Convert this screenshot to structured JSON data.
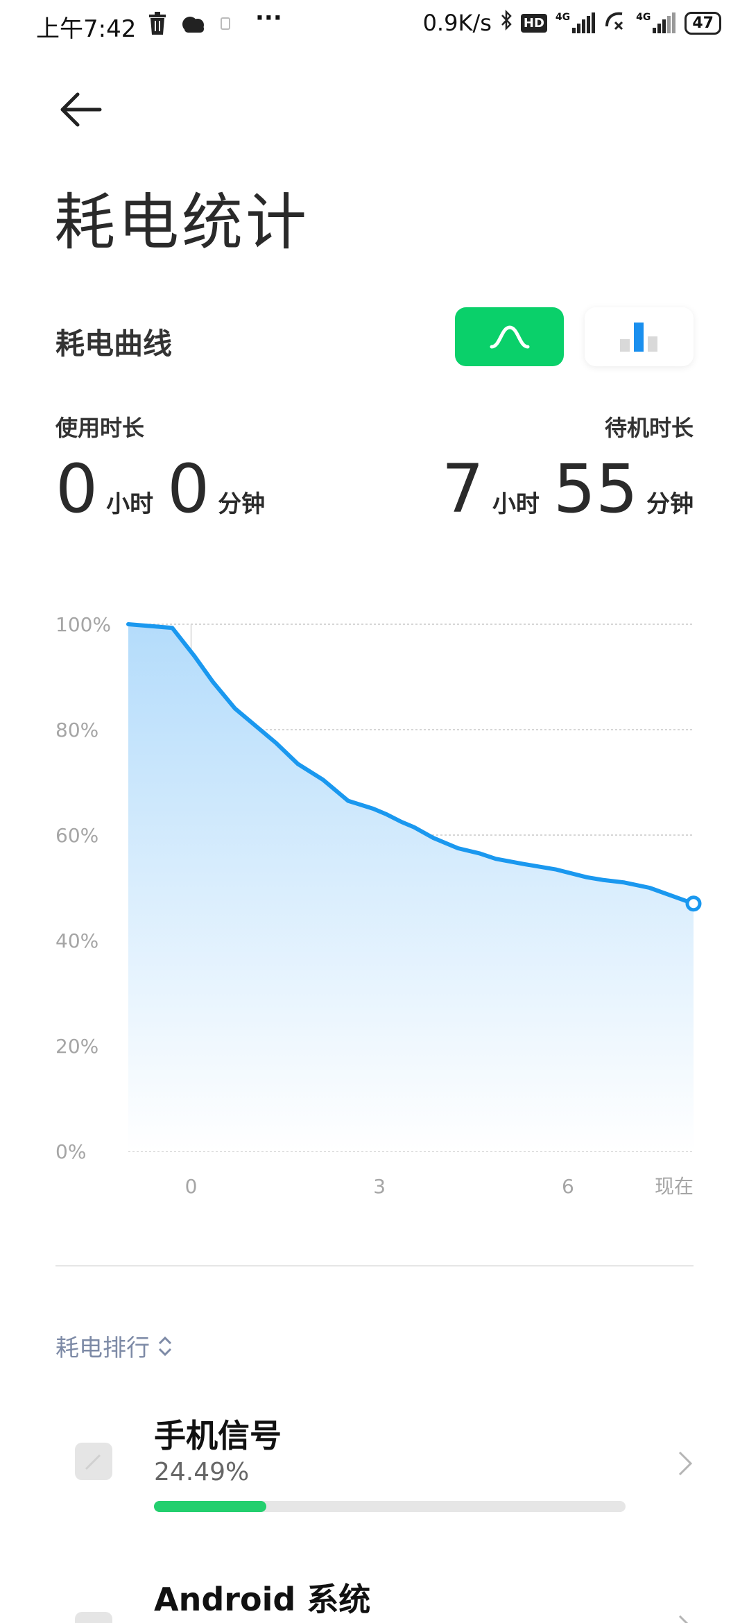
{
  "status_bar": {
    "time": "上午7:42",
    "network_speed": "0.9K/s",
    "hd_label": "HD",
    "network_type_1": "4G",
    "network_type_2": "4G",
    "battery_level": "47",
    "more_label": "···"
  },
  "header": {
    "title": "耗电统计"
  },
  "curve_section": {
    "title": "耗电曲线",
    "active_view": "curve"
  },
  "usage": {
    "label": "使用时长",
    "hours": "0",
    "hours_unit": "小时",
    "minutes": "0",
    "minutes_unit": "分钟"
  },
  "standby": {
    "label": "待机时长",
    "hours": "7",
    "hours_unit": "小时",
    "minutes": "55",
    "minutes_unit": "分钟"
  },
  "chart_data": {
    "type": "area",
    "y_ticks": [
      "100%",
      "80%",
      "60%",
      "40%",
      "20%",
      "0%"
    ],
    "x_ticks": [
      "0",
      "3",
      "6",
      "现在"
    ],
    "x_tick_values": [
      0,
      3,
      6,
      8
    ],
    "ylim": [
      0,
      100
    ],
    "xlim": [
      -1,
      8
    ],
    "grid": true,
    "colors": {
      "line": "#1a98ef",
      "fill_top": "#b4dcfb",
      "fill_bottom": "#ffffff"
    },
    "series": [
      {
        "x": [
          -1.0,
          -0.3,
          0.05,
          0.35,
          0.7,
          1.05,
          1.35,
          1.7,
          2.1,
          2.2,
          2.5,
          2.9,
          3.1,
          3.35,
          3.55,
          3.85,
          4.25,
          4.6,
          4.85,
          5.3,
          5.8,
          6.3,
          6.55,
          6.9,
          7.3,
          8.0
        ],
        "y": [
          100,
          99.3,
          94,
          89,
          84,
          80.5,
          77.5,
          73.5,
          70.5,
          69.5,
          66.5,
          65,
          64,
          62.5,
          61.5,
          59.5,
          57.5,
          56.5,
          55.5,
          54.5,
          53.5,
          52,
          51.5,
          51,
          50,
          47
        ]
      }
    ],
    "marker_y": 47
  },
  "ranking": {
    "label": "耗电排行"
  },
  "items": [
    {
      "name": "手机信号",
      "percent_text": "24.49%",
      "percent": 24.49
    },
    {
      "name": "Android 系统",
      "percent_text": "",
      "percent": 0
    }
  ]
}
